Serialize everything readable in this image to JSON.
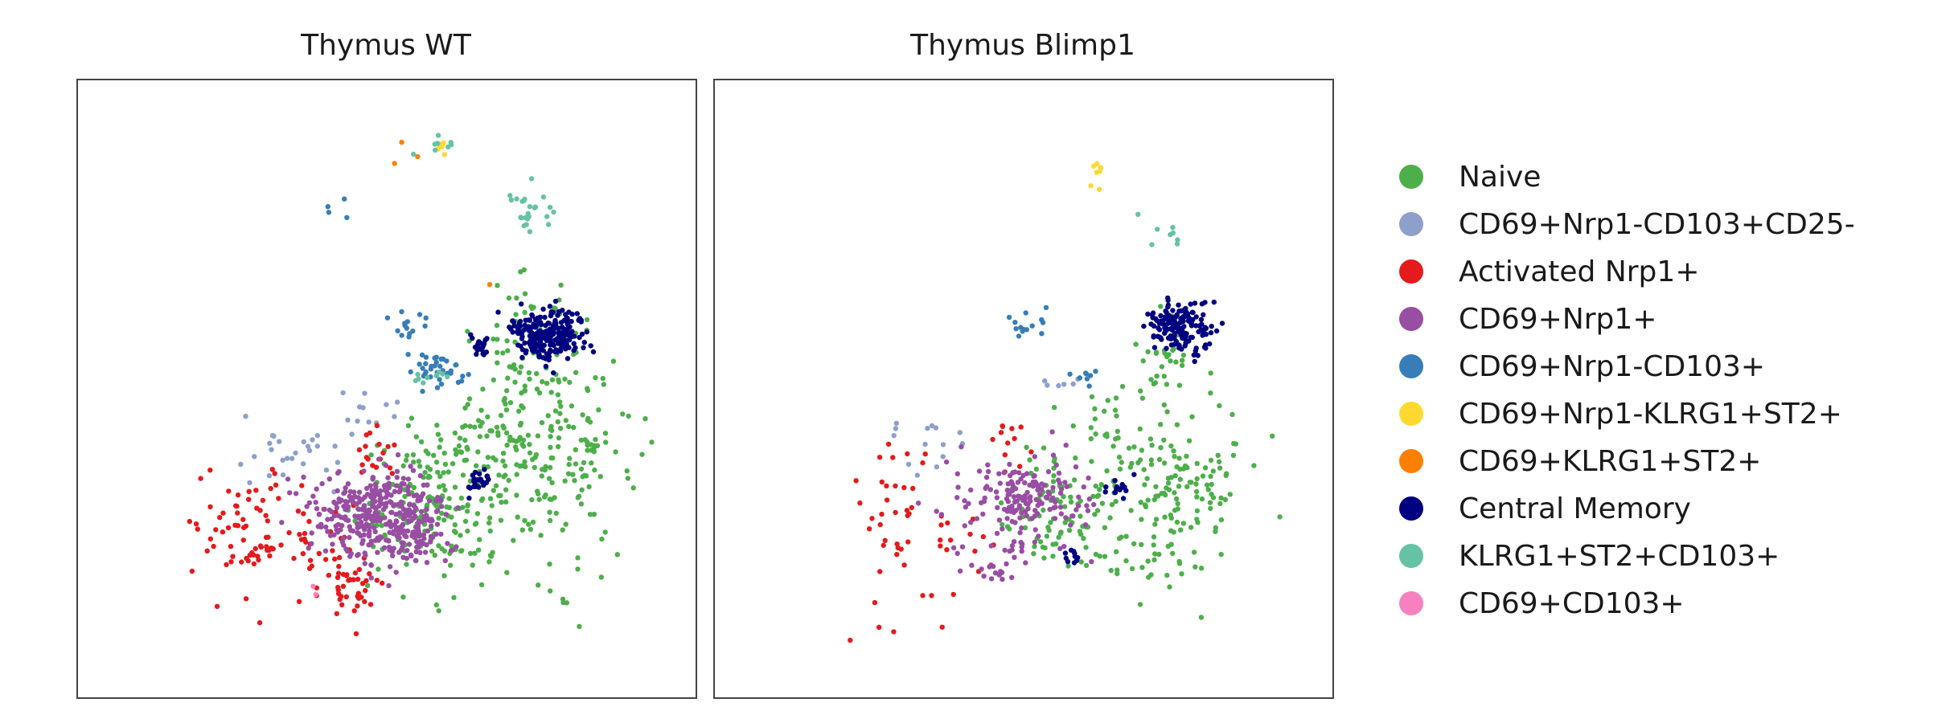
{
  "chart_data": [
    {
      "type": "scatter",
      "title": "Thymus WT",
      "xlabel": "",
      "ylabel": "",
      "grid": false,
      "axes_ticks": false,
      "legend": "right",
      "xlim": [
        0,
        100
      ],
      "ylim": [
        0,
        100
      ],
      "series": [
        {
          "name": "Naive",
          "color": "#4daf4a",
          "clusters": [
            {
              "cx": 74,
              "cy": 40,
              "sx": 8,
              "sy": 9,
              "n": 260
            },
            {
              "cx": 58,
              "cy": 32,
              "sx": 6,
              "sy": 6,
              "n": 170
            },
            {
              "cx": 72,
              "cy": 58,
              "sx": 4,
              "sy": 5,
              "n": 40
            }
          ]
        },
        {
          "name": "CD69+Nrp1-CD103+CD25-",
          "color": "#8da0cb",
          "clusters": [
            {
              "cx": 35,
              "cy": 40,
              "sx": 4,
              "sy": 3,
              "n": 28
            },
            {
              "cx": 47,
              "cy": 47,
              "sx": 3,
              "sy": 2,
              "n": 10
            }
          ]
        },
        {
          "name": "Activated Nrp1+",
          "color": "#e41a1c",
          "clusters": [
            {
              "cx": 27,
              "cy": 27,
              "sx": 5,
              "sy": 5,
              "n": 70
            },
            {
              "cx": 45,
              "cy": 18,
              "sx": 2.5,
              "sy": 2.5,
              "n": 38
            },
            {
              "cx": 38,
              "cy": 24,
              "sx": 4,
              "sy": 5,
              "n": 30
            },
            {
              "cx": 48,
              "cy": 40,
              "sx": 2,
              "sy": 2.5,
              "n": 18
            }
          ]
        },
        {
          "name": "CD69+Nrp1+",
          "color": "#984ea3",
          "clusters": [
            {
              "cx": 49,
              "cy": 30,
              "sx": 5,
              "sy": 3.5,
              "n": 340
            },
            {
              "cx": 55,
              "cy": 26,
              "sx": 3,
              "sy": 2.5,
              "n": 60
            }
          ]
        },
        {
          "name": "CD69+Nrp1-CD103+",
          "color": "#377eb8",
          "clusters": [
            {
              "cx": 58,
              "cy": 53,
              "sx": 2,
              "sy": 1.5,
              "n": 36
            },
            {
              "cx": 53,
              "cy": 60,
              "sx": 2,
              "sy": 1.5,
              "n": 14
            },
            {
              "cx": 44,
              "cy": 80,
              "sx": 4,
              "sy": 3,
              "n": 4
            }
          ]
        },
        {
          "name": "CD69+Nrp1-KLRG1+ST2+",
          "color": "#ffd92f",
          "clusters": [
            {
              "cx": 59,
              "cy": 89,
              "sx": 1,
              "sy": 0.6,
              "n": 8
            }
          ]
        },
        {
          "name": "CD69+KLRG1+ST2+",
          "color": "#ff7f00",
          "clusters": [
            {
              "cx": 52,
              "cy": 88,
              "sx": 2,
              "sy": 1,
              "n": 3
            },
            {
              "cx": 66,
              "cy": 67,
              "sx": 1,
              "sy": 1,
              "n": 1
            }
          ]
        },
        {
          "name": "Central Memory",
          "color": "#000080",
          "clusters": [
            {
              "cx": 76,
              "cy": 59,
              "sx": 3,
              "sy": 2,
              "n": 240
            },
            {
              "cx": 65,
              "cy": 57,
              "sx": 1.2,
              "sy": 1,
              "n": 25
            },
            {
              "cx": 65,
              "cy": 35,
              "sx": 1.2,
              "sy": 1,
              "n": 25
            }
          ]
        },
        {
          "name": "KLRG1+ST2+CD103+",
          "color": "#66c2a5",
          "clusters": [
            {
              "cx": 73,
              "cy": 79,
              "sx": 2,
              "sy": 2.5,
              "n": 24
            },
            {
              "cx": 59,
              "cy": 89,
              "sx": 1.5,
              "sy": 1,
              "n": 8
            },
            {
              "cx": 58,
              "cy": 52,
              "sx": 1.5,
              "sy": 1,
              "n": 10
            }
          ]
        },
        {
          "name": "CD69+CD103+",
          "color": "#f781bf",
          "clusters": [
            {
              "cx": 38,
              "cy": 17,
              "sx": 1,
              "sy": 1,
              "n": 2
            }
          ]
        }
      ]
    },
    {
      "type": "scatter",
      "title": "Thymus Blimp1",
      "xlabel": "",
      "ylabel": "",
      "grid": false,
      "axes_ticks": false,
      "legend": "right",
      "xlim": [
        0,
        100
      ],
      "ylim": [
        0,
        100
      ],
      "series": [
        {
          "name": "Naive",
          "color": "#4daf4a",
          "clusters": [
            {
              "cx": 72,
              "cy": 36,
              "sx": 7,
              "sy": 9,
              "n": 190
            },
            {
              "cx": 56,
              "cy": 30,
              "sx": 5,
              "sy": 5,
              "n": 90
            },
            {
              "cx": 73,
              "cy": 55,
              "sx": 2,
              "sy": 3,
              "n": 25
            }
          ]
        },
        {
          "name": "CD69+Nrp1-CD103+CD25-",
          "color": "#8da0cb",
          "clusters": [
            {
              "cx": 35,
              "cy": 42,
              "sx": 3,
              "sy": 3,
              "n": 14
            },
            {
              "cx": 57,
              "cy": 50,
              "sx": 2,
              "sy": 1,
              "n": 6
            }
          ]
        },
        {
          "name": "Activated Nrp1+",
          "color": "#e41a1c",
          "clusters": [
            {
              "cx": 33,
              "cy": 25,
              "sx": 6,
              "sy": 8,
              "n": 55
            },
            {
              "cx": 48,
              "cy": 43,
              "sx": 2,
              "sy": 2,
              "n": 10
            }
          ]
        },
        {
          "name": "CD69+Nrp1+",
          "color": "#984ea3",
          "clusters": [
            {
              "cx": 50,
              "cy": 32,
              "sx": 5,
              "sy": 3.5,
              "n": 180
            },
            {
              "cx": 45,
              "cy": 20,
              "sx": 2,
              "sy": 2,
              "n": 18
            }
          ]
        },
        {
          "name": "CD69+Nrp1-CD103+",
          "color": "#377eb8",
          "clusters": [
            {
              "cx": 51,
              "cy": 60,
              "sx": 2,
              "sy": 1.5,
              "n": 14
            },
            {
              "cx": 60,
              "cy": 52,
              "sx": 1,
              "sy": 1,
              "n": 8
            }
          ]
        },
        {
          "name": "CD69+Nrp1-KLRG1+ST2+",
          "color": "#ffd92f",
          "clusters": [
            {
              "cx": 62,
              "cy": 85,
              "sx": 1,
              "sy": 2,
              "n": 7
            }
          ]
        },
        {
          "name": "CD69+KLRG1+ST2+",
          "color": "#ff7f00",
          "clusters": []
        },
        {
          "name": "Central Memory",
          "color": "#000080",
          "clusters": [
            {
              "cx": 75,
              "cy": 60,
              "sx": 2.5,
              "sy": 2,
              "n": 160
            },
            {
              "cx": 65,
              "cy": 34,
              "sx": 1,
              "sy": 1,
              "n": 15
            },
            {
              "cx": 57,
              "cy": 23,
              "sx": 1,
              "sy": 1,
              "n": 10
            }
          ]
        },
        {
          "name": "KLRG1+ST2+CD103+",
          "color": "#66c2a5",
          "clusters": [
            {
              "cx": 73,
              "cy": 75,
              "sx": 1.5,
              "sy": 2.5,
              "n": 8
            }
          ]
        },
        {
          "name": "CD69+CD103+",
          "color": "#f781bf",
          "clusters": []
        }
      ]
    }
  ]
}
